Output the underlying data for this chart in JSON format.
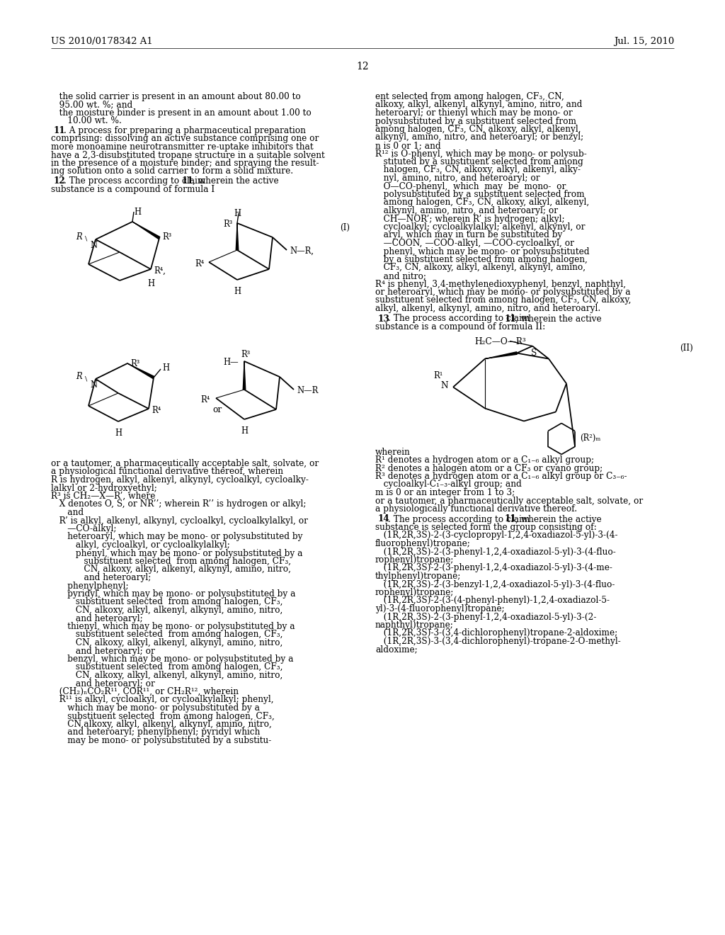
{
  "bg_color": "#ffffff",
  "header_left": "US 2010/0178342 A1",
  "header_right": "Jul. 15, 2010",
  "page_number": "12"
}
